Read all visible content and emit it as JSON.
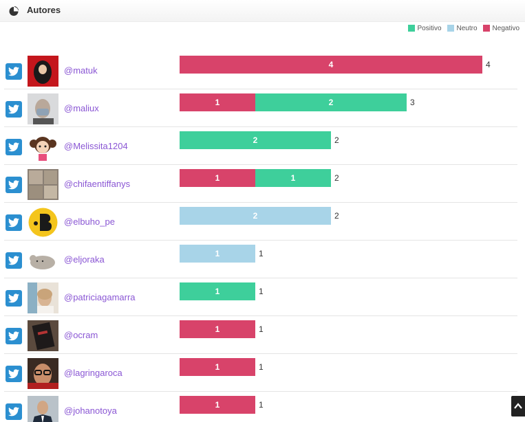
{
  "panel": {
    "title": "Autores",
    "icon": "pie-chart-icon"
  },
  "legend": [
    {
      "label": "Positivo",
      "color": "#3ecf9b"
    },
    {
      "label": "Neutro",
      "color": "#a8d4e8"
    },
    {
      "label": "Negativo",
      "color": "#d8436a"
    }
  ],
  "authors": [
    {
      "handle": "@matuk",
      "avatar": "avatar-dark-red"
    },
    {
      "handle": "@maliux",
      "avatar": "avatar-masked-person"
    },
    {
      "handle": "@Melissita1204",
      "avatar": "avatar-cartoon-girl"
    },
    {
      "handle": "@chifaentiffanys",
      "avatar": "avatar-photo-collage"
    },
    {
      "handle": "@elbuho_pe",
      "avatar": "avatar-yellow-logo"
    },
    {
      "handle": "@eljoraka",
      "avatar": "avatar-grey-cat"
    },
    {
      "handle": "@patriciagamarra",
      "avatar": "avatar-woman-portrait"
    },
    {
      "handle": "@ocram",
      "avatar": "avatar-book-cover"
    },
    {
      "handle": "@lagringaroca",
      "avatar": "avatar-man-glasses"
    },
    {
      "handle": "@johanotoya",
      "avatar": "avatar-man-suit"
    }
  ],
  "chart_data": {
    "type": "bar",
    "orientation": "horizontal",
    "stacked": true,
    "categories": [
      "@matuk",
      "@maliux",
      "@Melissita1204",
      "@chifaentiffanys",
      "@elbuho_pe",
      "@eljoraka",
      "@patriciagamarra",
      "@ocram",
      "@lagringaroca",
      "@johanotoya"
    ],
    "series": [
      {
        "name": "Negativo",
        "color": "#d8436a",
        "values": [
          4,
          1,
          0,
          1,
          0,
          0,
          0,
          1,
          1,
          1
        ]
      },
      {
        "name": "Positivo",
        "color": "#3ecf9b",
        "values": [
          0,
          2,
          2,
          1,
          0,
          0,
          1,
          0,
          0,
          0
        ]
      },
      {
        "name": "Neutro",
        "color": "#a8d4e8",
        "values": [
          0,
          0,
          0,
          0,
          2,
          1,
          0,
          0,
          0,
          0
        ]
      }
    ],
    "totals": [
      4,
      3,
      2,
      2,
      2,
      1,
      1,
      1,
      1,
      1
    ],
    "xlim": [
      0,
      4
    ],
    "grid": false,
    "legend": "top-right"
  }
}
